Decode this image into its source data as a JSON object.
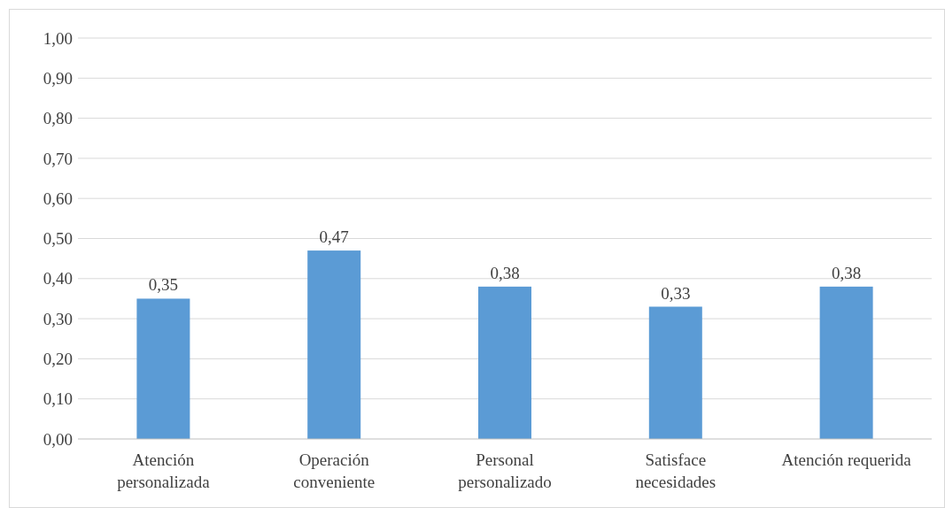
{
  "chart_data": {
    "type": "bar",
    "categories": [
      "Atención personalizada",
      "Operación conveniente",
      "Personal personalizado",
      "Satisface necesidades",
      "Atención requerida"
    ],
    "values": [
      0.35,
      0.47,
      0.38,
      0.33,
      0.38
    ],
    "value_labels": [
      "0,35",
      "0,47",
      "0,38",
      "0,33",
      "0,38"
    ],
    "color": "#5b9bd5",
    "ylim": [
      0,
      1
    ],
    "yticks": [
      {
        "value": 0,
        "label": "0,00"
      },
      {
        "value": 0.1,
        "label": "0,10"
      },
      {
        "value": 0.2,
        "label": "0,20"
      },
      {
        "value": 0.3,
        "label": "0,30"
      },
      {
        "value": 0.4,
        "label": "0,40"
      },
      {
        "value": 0.5,
        "label": "0,50"
      },
      {
        "value": 0.6,
        "label": "0,60"
      },
      {
        "value": 0.7,
        "label": "0,70"
      },
      {
        "value": 0.8,
        "label": "0,80"
      },
      {
        "value": 0.9,
        "label": "0,90"
      },
      {
        "value": 1,
        "label": "1,00"
      }
    ],
    "grid": "y"
  }
}
